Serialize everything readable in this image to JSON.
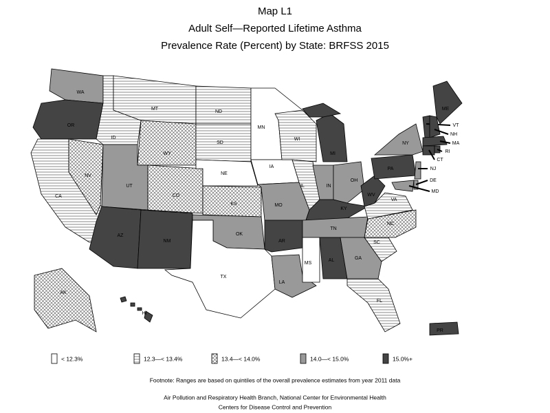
{
  "header": {
    "title": [
      "Map L1",
      "Adult Self—Reported Lifetime Asthma",
      "Prevalence Rate (Percent) by State: BRFSS 2015"
    ]
  },
  "legend": [
    {
      "label": "< 12.3%",
      "fill": "white"
    },
    {
      "label": "12.3—< 13.4%",
      "fill": "hlines"
    },
    {
      "label": "13.4—< 14.0%",
      "fill": "cross"
    },
    {
      "label": "14.0—< 15.0%",
      "fill": "#999999"
    },
    {
      "label": "15.0%+",
      "fill": "#444444"
    }
  ],
  "states": [
    {
      "label": "WA",
      "fill": "#999999"
    },
    {
      "label": "OR",
      "fill": "#444444"
    },
    {
      "label": "CA",
      "fill": "hlines"
    },
    {
      "label": "NV",
      "fill": "cross"
    },
    {
      "label": "ID",
      "fill": "hlines"
    },
    {
      "label": "MT",
      "fill": "hlines"
    },
    {
      "label": "WY",
      "fill": "cross"
    },
    {
      "label": "UT",
      "fill": "#999999"
    },
    {
      "label": "CO",
      "fill": "cross"
    },
    {
      "label": "AZ",
      "fill": "#444444"
    },
    {
      "label": "NM",
      "fill": "#444444"
    },
    {
      "label": "ND",
      "fill": "hlines"
    },
    {
      "label": "SD",
      "fill": "hlines"
    },
    {
      "label": "NE",
      "fill": "white"
    },
    {
      "label": "KS",
      "fill": "cross"
    },
    {
      "label": "OK",
      "fill": "#999999"
    },
    {
      "label": "TX",
      "fill": "white"
    },
    {
      "label": "MN",
      "fill": "white"
    },
    {
      "label": "IA",
      "fill": "white"
    },
    {
      "label": "MO",
      "fill": "#999999"
    },
    {
      "label": "AR",
      "fill": "#444444"
    },
    {
      "label": "LA",
      "fill": "#999999"
    },
    {
      "label": "WI",
      "fill": "hlines"
    },
    {
      "label": "IL",
      "fill": "hlines"
    },
    {
      "label": "MI",
      "fill": "#444444"
    },
    {
      "label": "IN",
      "fill": "#999999"
    },
    {
      "label": "OH",
      "fill": "#999999"
    },
    {
      "label": "KY",
      "fill": "#444444"
    },
    {
      "label": "TN",
      "fill": "#999999"
    },
    {
      "label": "MS",
      "fill": "white"
    },
    {
      "label": "AL",
      "fill": "#444444"
    },
    {
      "label": "GA",
      "fill": "#999999"
    },
    {
      "label": "FL",
      "fill": "hlines"
    },
    {
      "label": "SC",
      "fill": "hlines"
    },
    {
      "label": "NC",
      "fill": "cross"
    },
    {
      "label": "VA",
      "fill": "hlines"
    },
    {
      "label": "WV",
      "fill": "#444444"
    },
    {
      "label": "PA",
      "fill": "#444444"
    },
    {
      "label": "NY",
      "fill": "#999999"
    },
    {
      "label": "ME",
      "fill": "#444444"
    },
    {
      "label": "VT",
      "fill": "#444444"
    },
    {
      "label": "NH",
      "fill": "#444444"
    },
    {
      "label": "MA",
      "fill": "#444444"
    },
    {
      "label": "CT",
      "fill": "#444444"
    },
    {
      "label": "RI",
      "fill": "#444444"
    },
    {
      "label": "NJ",
      "fill": "#999999"
    },
    {
      "label": "DE",
      "fill": "#999999"
    },
    {
      "label": "MD",
      "fill": "#999999"
    },
    {
      "label": "AK",
      "fill": "cross"
    },
    {
      "label": "HI",
      "fill": "#444444"
    },
    {
      "label": "PR",
      "fill": "#444444"
    }
  ],
  "footnote": "Footnote: Ranges are based on quintiles of the overall prevalence estimates from year 2011 data",
  "credits": [
    "Air Pollution and Respiratory Health Branch, National Center for Environmental Health",
    "Centers for Disease Control and Prevention"
  ]
}
